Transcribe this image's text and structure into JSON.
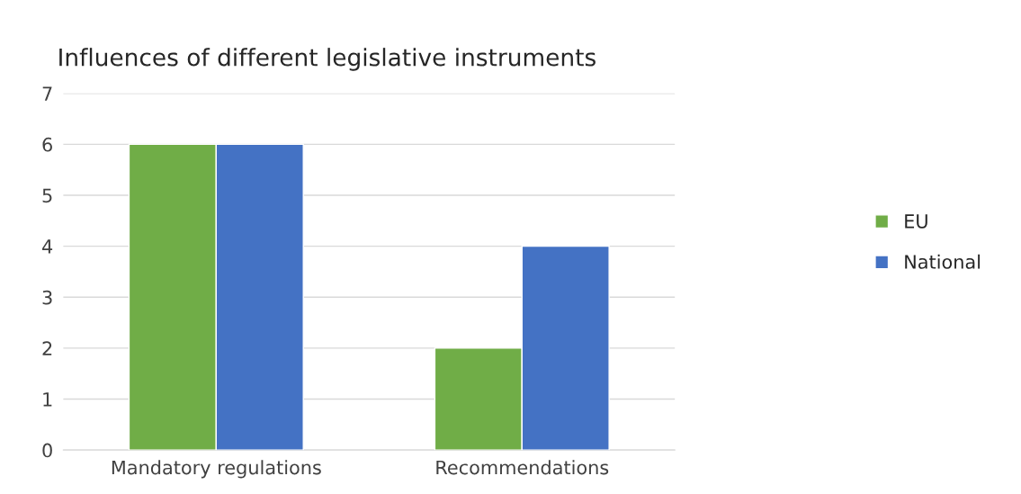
{
  "chart_data": {
    "type": "bar",
    "title": "Influences of different legislative instruments",
    "categories": [
      "Mandatory regulations",
      "Recommendations"
    ],
    "series": [
      {
        "name": "EU",
        "color": "#70ad47",
        "values": [
          6,
          2
        ]
      },
      {
        "name": "National",
        "color": "#4472c4",
        "values": [
          6,
          4
        ]
      }
    ],
    "ylim": [
      0,
      7
    ],
    "yticks": [
      0,
      1,
      2,
      3,
      4,
      5,
      6,
      7
    ],
    "grid": "y",
    "legend": "right"
  }
}
